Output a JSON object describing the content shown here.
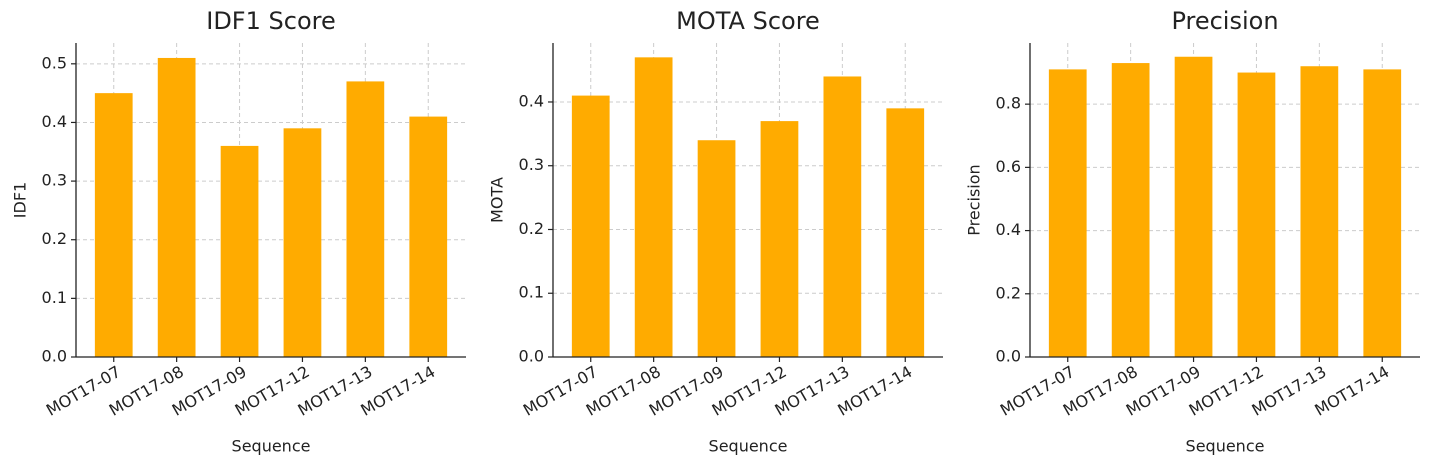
{
  "chart_data": [
    {
      "type": "bar",
      "title": "IDF1 Score",
      "x_label": "Sequence",
      "y_label": "IDF1",
      "categories": [
        "MOT17-07",
        "MOT17-08",
        "MOT17-09",
        "MOT17-12",
        "MOT17-13",
        "MOT17-14"
      ],
      "values": [
        0.45,
        0.51,
        0.36,
        0.39,
        0.47,
        0.41
      ],
      "color": "#ffab00",
      "ylim": [
        0,
        0.5355
      ],
      "yticks": [
        {
          "value": 0,
          "label": "0.0"
        },
        0.1,
        0.2,
        0.3,
        0.4,
        0.5
      ],
      "grid": true
    },
    {
      "type": "bar",
      "title": "MOTA Score",
      "x_label": "Sequence",
      "y_label": "MOTA",
      "categories": [
        "MOT17-07",
        "MOT17-08",
        "MOT17-09",
        "MOT17-12",
        "MOT17-13",
        "MOT17-14"
      ],
      "values": [
        0.41,
        0.47,
        0.34,
        0.37,
        0.44,
        0.39
      ],
      "color": "#ffab00",
      "ylim": [
        0,
        0.4925
      ],
      "yticks": [
        {
          "value": 0,
          "label": "0.0"
        },
        0.1,
        0.2,
        0.3,
        0.4
      ],
      "grid": true
    },
    {
      "type": "bar",
      "title": "Precision",
      "x_label": "Sequence",
      "y_label": "Precision",
      "categories": [
        "MOT17-07",
        "MOT17-08",
        "MOT17-09",
        "MOT17-12",
        "MOT17-13",
        "MOT17-14"
      ],
      "values": [
        0.91,
        0.93,
        0.95,
        0.9,
        0.92,
        0.91
      ],
      "color": "#ffab00",
      "ylim": [
        0,
        0.9935
      ],
      "yticks": [
        {
          "value": 0,
          "label": "0.0"
        },
        0.2,
        0.4,
        0.6,
        0.8
      ],
      "grid": true
    }
  ]
}
